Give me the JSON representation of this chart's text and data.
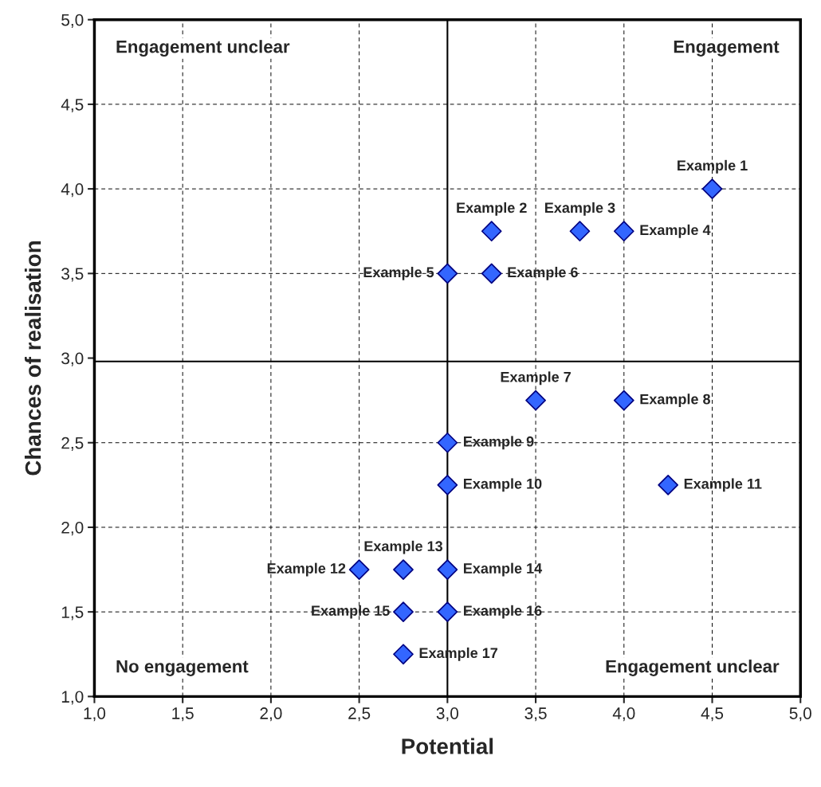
{
  "chart_data": {
    "type": "scatter",
    "xlabel": "Potential",
    "ylabel": "Chances of realisation",
    "x": [
      4.5,
      3.25,
      3.75,
      4.0,
      3.0,
      3.25,
      3.5,
      4.0,
      3.0,
      3.0,
      4.25,
      2.5,
      2.75,
      3.0,
      2.75,
      3.0,
      2.75
    ],
    "values": [
      4.0,
      3.75,
      3.75,
      3.75,
      3.5,
      3.5,
      2.75,
      2.75,
      2.5,
      2.25,
      2.25,
      1.75,
      1.75,
      1.75,
      1.5,
      1.5,
      1.25
    ],
    "color": "#3366ff",
    "marker": "diamond",
    "xlim": [
      1.0,
      5.0
    ],
    "ylim": [
      1.0,
      5.0
    ],
    "xticks": [
      {
        "value": 1.0,
        "label": "1,0"
      },
      {
        "value": 1.5,
        "label": "1,5"
      },
      {
        "value": 2.0,
        "label": "2,0"
      },
      {
        "value": 2.5,
        "label": "2,5"
      },
      {
        "value": 3.0,
        "label": "3,0"
      },
      {
        "value": 3.5,
        "label": "3,5"
      },
      {
        "value": 4.0,
        "label": "4,0"
      },
      {
        "value": 4.5,
        "label": "4,5"
      },
      {
        "value": 5.0,
        "label": "5,0"
      }
    ],
    "yticks": [
      {
        "value": 1.0,
        "label": "1,0"
      },
      {
        "value": 1.5,
        "label": "1,5"
      },
      {
        "value": 2.0,
        "label": "2,0"
      },
      {
        "value": 2.5,
        "label": "2,5"
      },
      {
        "value": 3.0,
        "label": "3,0"
      },
      {
        "value": 3.5,
        "label": "3,5"
      },
      {
        "value": 4.0,
        "label": "4,0"
      },
      {
        "value": 4.5,
        "label": "4,5"
      },
      {
        "value": 5.0,
        "label": "5,0"
      }
    ],
    "grid": true,
    "ref_lines": [
      {
        "axis": "x",
        "value": 3.0,
        "color": "#000000"
      },
      {
        "axis": "y",
        "value": 2.98,
        "color": "#000000"
      }
    ],
    "annotations": [
      {
        "text": "Example 1",
        "x": 4.5,
        "y": 4.0
      },
      {
        "text": "Example 2",
        "x": 3.25,
        "y": 3.75
      },
      {
        "text": "Example 3",
        "x": 3.75,
        "y": 3.75
      },
      {
        "text": "Example 4",
        "x": 4.0,
        "y": 3.75
      },
      {
        "text": "Example 5",
        "x": 3.0,
        "y": 3.5
      },
      {
        "text": "Example 6",
        "x": 3.25,
        "y": 3.5
      },
      {
        "text": "Example 7",
        "x": 3.5,
        "y": 2.75
      },
      {
        "text": "Example 8",
        "x": 4.0,
        "y": 2.75
      },
      {
        "text": "Example 9",
        "x": 3.0,
        "y": 2.5
      },
      {
        "text": "Example 10",
        "x": 3.0,
        "y": 2.25
      },
      {
        "text": "Example 11",
        "x": 4.25,
        "y": 2.25
      },
      {
        "text": "Example 12",
        "x": 2.5,
        "y": 1.75
      },
      {
        "text": "Example 13",
        "x": 2.75,
        "y": 1.75
      },
      {
        "text": "Example 14",
        "x": 3.0,
        "y": 1.75
      },
      {
        "text": "Example 15",
        "x": 2.75,
        "y": 1.5
      },
      {
        "text": "Example 16",
        "x": 3.0,
        "y": 1.5
      },
      {
        "text": "Example 17",
        "x": 2.75,
        "y": 1.25
      },
      "Engagement unclear",
      "Engagement",
      "No engagement",
      "Engagement unclear"
    ]
  }
}
